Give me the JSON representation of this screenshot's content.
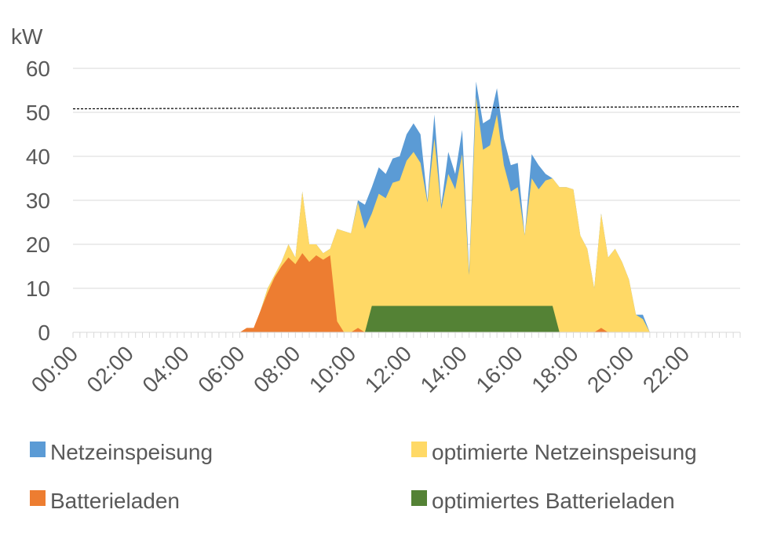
{
  "chart_data": {
    "type": "area",
    "ylabel": "kW",
    "ylim": [
      0,
      60
    ],
    "yticks": [
      0,
      10,
      20,
      30,
      40,
      50,
      60
    ],
    "xlim_hours": [
      0,
      24
    ],
    "x_tick_labels": [
      "00:00",
      "02:00",
      "04:00",
      "06:00",
      "08:00",
      "10:00",
      "12:00",
      "14:00",
      "16:00",
      "18:00",
      "20:00",
      "22:00"
    ],
    "grid": "horizontal",
    "legend_position": "bottom",
    "threshold_line": {
      "style": "dashed",
      "color": "#000000",
      "values": [
        [
          0,
          50.8
        ],
        [
          24,
          51.3
        ]
      ]
    },
    "series": [
      {
        "name": "Netzeinspeisung",
        "color": "#5b9bd5",
        "x": [
          "00:00",
          "06:00",
          "06:15",
          "06:30",
          "06:45",
          "07:00",
          "07:15",
          "07:30",
          "07:45",
          "08:00",
          "08:15",
          "08:30",
          "08:45",
          "09:00",
          "09:15",
          "09:30",
          "09:45",
          "10:00",
          "10:15",
          "10:30",
          "10:45",
          "11:00",
          "11:15",
          "11:30",
          "11:45",
          "12:00",
          "12:15",
          "12:30",
          "12:45",
          "13:00",
          "13:15",
          "13:30",
          "13:45",
          "14:00",
          "14:15",
          "14:30",
          "14:45",
          "15:00",
          "15:15",
          "15:30",
          "15:45",
          "16:00",
          "16:15",
          "16:30",
          "16:45",
          "17:00",
          "17:15",
          "17:30",
          "17:45",
          "18:00",
          "18:15",
          "18:30",
          "18:45",
          "19:00",
          "19:15",
          "19:30",
          "19:45",
          "20:00",
          "20:15",
          "20:30",
          "20:45",
          "21:00",
          "24:00"
        ],
        "values": [
          0,
          0,
          0.5,
          0.5,
          5,
          10,
          13,
          16,
          20,
          17,
          32,
          20,
          20,
          18,
          19,
          23.5,
          23,
          22.5,
          30,
          29,
          33,
          37.5,
          36,
          39.5,
          40,
          45,
          47.5,
          45,
          30,
          49.5,
          29,
          41,
          36,
          46,
          14,
          57,
          47.5,
          48.5,
          55.5,
          44,
          38,
          38.5,
          22,
          40.5,
          38,
          36,
          35,
          33,
          33,
          32.5,
          22,
          19,
          10,
          27,
          17,
          19,
          16,
          12,
          4,
          4,
          0,
          0,
          0
        ]
      },
      {
        "name": "optimierte Netzeinspeisung",
        "color": "#ffd966",
        "x": [
          "00:00",
          "06:00",
          "06:15",
          "06:30",
          "06:45",
          "07:00",
          "07:15",
          "07:30",
          "07:45",
          "08:00",
          "08:15",
          "08:30",
          "08:45",
          "09:00",
          "09:15",
          "09:30",
          "09:45",
          "10:00",
          "10:15",
          "10:30",
          "10:45",
          "11:00",
          "11:15",
          "11:30",
          "11:45",
          "12:00",
          "12:15",
          "12:30",
          "12:45",
          "13:00",
          "13:15",
          "13:30",
          "13:45",
          "14:00",
          "14:15",
          "14:30",
          "14:45",
          "15:00",
          "15:15",
          "15:30",
          "15:45",
          "16:00",
          "16:15",
          "16:30",
          "16:45",
          "17:00",
          "17:15",
          "17:30",
          "17:45",
          "18:00",
          "18:15",
          "18:30",
          "18:45",
          "19:00",
          "19:15",
          "19:30",
          "19:45",
          "20:00",
          "20:15",
          "20:30",
          "20:45",
          "21:00",
          "24:00"
        ],
        "values": [
          0,
          0,
          0.5,
          0.5,
          5,
          10,
          13,
          16,
          20,
          17,
          32,
          20,
          20,
          18,
          19,
          23.5,
          23,
          22.5,
          29.5,
          23.5,
          27,
          31.5,
          30.5,
          34,
          34.5,
          39,
          41,
          38.5,
          29.5,
          44,
          28,
          36,
          32.5,
          40.5,
          13,
          53.5,
          41.5,
          42.5,
          49.5,
          38,
          32,
          33,
          22,
          35,
          32.5,
          34.5,
          35,
          33,
          33,
          32.5,
          22,
          19,
          10,
          27,
          17,
          19,
          16,
          12,
          4,
          3,
          0,
          0,
          0
        ]
      },
      {
        "name": "Batterieladen",
        "color": "#ed7d31",
        "x": [
          "00:00",
          "06:00",
          "06:15",
          "06:30",
          "06:45",
          "07:00",
          "07:15",
          "07:30",
          "07:45",
          "08:00",
          "08:15",
          "08:30",
          "08:45",
          "09:00",
          "09:15",
          "09:30",
          "09:45",
          "10:00",
          "10:15",
          "10:30",
          "10:45",
          "11:00",
          "18:30",
          "18:45",
          "19:00",
          "19:15",
          "19:30",
          "24:00"
        ],
        "values": [
          0,
          0,
          1,
          1,
          5,
          9,
          12.5,
          15,
          17,
          15.5,
          18,
          16,
          17.5,
          16.5,
          17.5,
          2.5,
          0,
          0,
          1,
          0,
          0,
          0,
          0,
          0,
          1,
          0,
          0,
          0
        ]
      },
      {
        "name": "optimiertes Batterieladen",
        "color": "#548235",
        "x": [
          "00:00",
          "10:30",
          "10:45",
          "11:00",
          "17:00",
          "17:15",
          "17:30",
          "24:00"
        ],
        "values": [
          0,
          0,
          6,
          6,
          6,
          6,
          0,
          0
        ]
      }
    ]
  }
}
